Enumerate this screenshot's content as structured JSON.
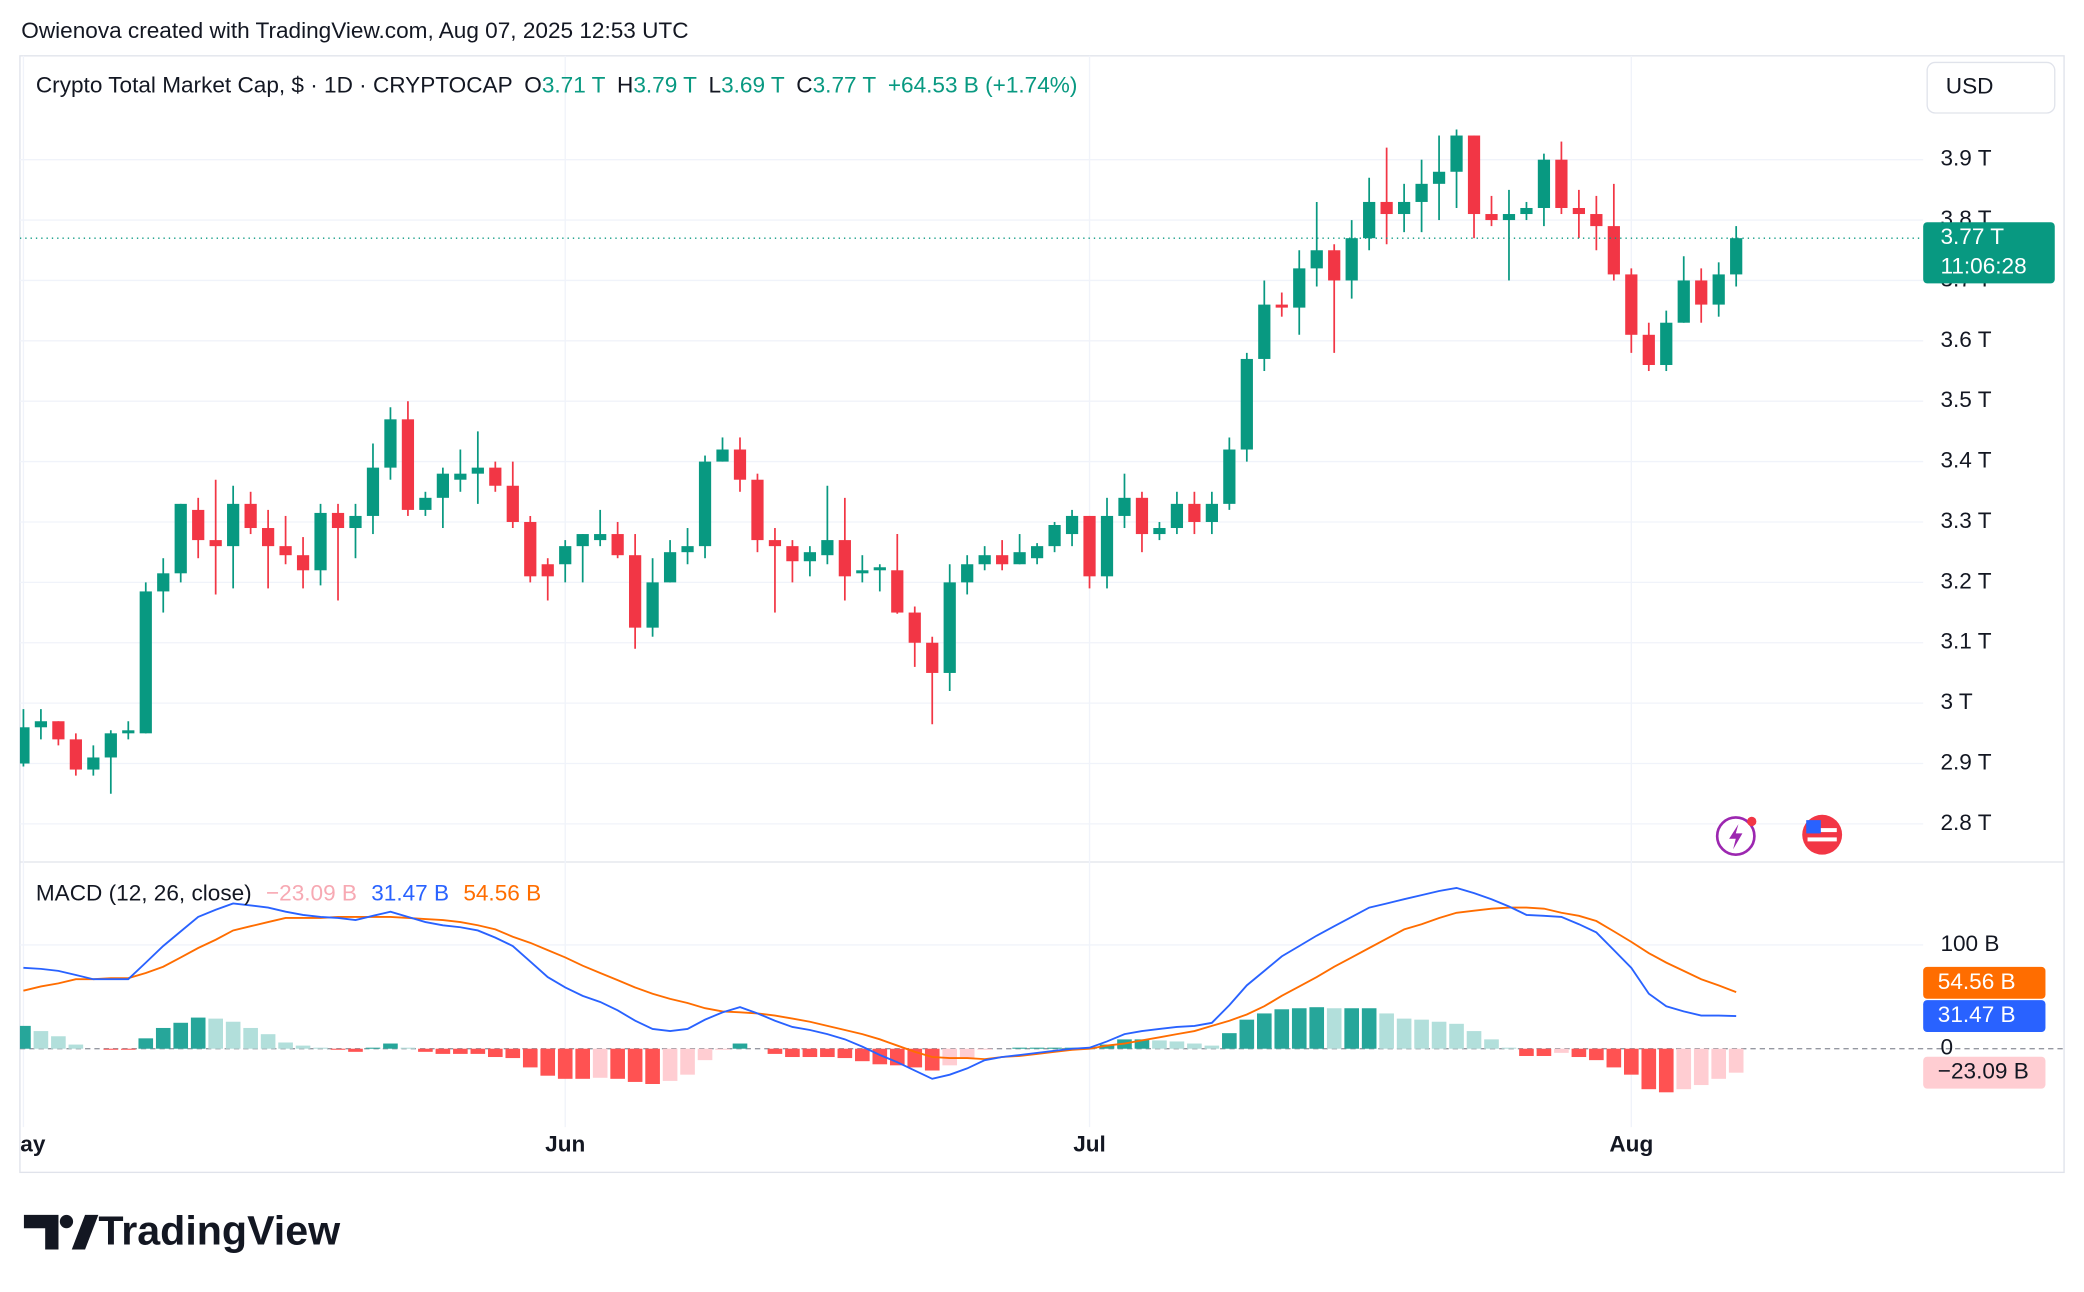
{
  "chart_data": {
    "type": "candlestick",
    "attribution": "Owienova created with TradingView.com, Aug 07, 2025 12:53 UTC",
    "legend": {
      "symbol": "Crypto Total Market Cap, $ · 1D · CRYPTOCAP",
      "open_key": "O",
      "open": "3.71 T",
      "high_key": "H",
      "high": "3.79 T",
      "low_key": "L",
      "low": "3.69 T",
      "close_key": "C",
      "close": "3.77 T",
      "change": "+64.53 B (+1.74%)"
    },
    "currency": "USD",
    "price_label": "3.77 T",
    "countdown": "11:06:28",
    "branding": "TradingView",
    "up_color": "#089981",
    "down_color": "#f23645",
    "grid": true,
    "xlim": [
      -0.2,
      108.7
    ],
    "xticks": [
      {
        "value": 0,
        "label": "May"
      },
      {
        "value": 31,
        "label": "Jun"
      },
      {
        "value": 61,
        "label": "Jul"
      },
      {
        "value": 92,
        "label": "Aug"
      }
    ],
    "ylim": [
      2.738,
      4.072
    ],
    "yticks": [
      {
        "value": 2.8,
        "label": "2.8 T"
      },
      {
        "value": 2.9,
        "label": "2.9 T"
      },
      {
        "value": 3,
        "label": "3 T"
      },
      {
        "value": 3.1,
        "label": "3.1 T"
      },
      {
        "value": 3.2,
        "label": "3.2 T"
      },
      {
        "value": 3.3,
        "label": "3.3 T"
      },
      {
        "value": 3.4,
        "label": "3.4 T"
      },
      {
        "value": 3.5,
        "label": "3.5 T"
      },
      {
        "value": 3.6,
        "label": "3.6 T"
      },
      {
        "value": 3.7,
        "label": "3.7 T"
      },
      {
        "value": 3.8,
        "label": "3.8 T"
      },
      {
        "value": 3.9,
        "label": "3.9 T"
      }
    ],
    "open": [
      2.9,
      2.96,
      2.97,
      2.94,
      2.89,
      2.91,
      2.95,
      2.95,
      3.185,
      3.215,
      3.32,
      3.27,
      3.26,
      3.33,
      3.29,
      3.26,
      3.245,
      3.22,
      3.315,
      3.29,
      3.31,
      3.39,
      3.47,
      3.32,
      3.34,
      3.37,
      3.38,
      3.39,
      3.36,
      3.3,
      3.23,
      3.23,
      3.26,
      3.27,
      3.28,
      3.245,
      3.125,
      3.2,
      3.25,
      3.26,
      3.4,
      3.42,
      3.37,
      3.27,
      3.26,
      3.235,
      3.245,
      3.27,
      3.215,
      3.22,
      3.22,
      3.15,
      3.1,
      3.05,
      3.2,
      3.23,
      3.245,
      3.23,
      3.24,
      3.26,
      3.28,
      3.31,
      3.21,
      3.31,
      3.34,
      3.28,
      3.29,
      3.33,
      3.3,
      3.33,
      3.42,
      3.57,
      3.66,
      3.655,
      3.72,
      3.75,
      3.7,
      3.77,
      3.83,
      3.81,
      3.83,
      3.86,
      3.88,
      3.94,
      3.81,
      3.8,
      3.81,
      3.82,
      3.9,
      3.82,
      3.81,
      3.79,
      3.71,
      3.61,
      3.56,
      3.63,
      3.7,
      3.66,
      3.71
    ],
    "high": [
      2.99,
      2.99,
      2.97,
      2.95,
      2.93,
      2.955,
      2.97,
      3.2,
      3.24,
      3.33,
      3.34,
      3.37,
      3.36,
      3.35,
      3.32,
      3.31,
      3.275,
      3.33,
      3.33,
      3.33,
      3.43,
      3.49,
      3.5,
      3.35,
      3.39,
      3.42,
      3.45,
      3.4,
      3.4,
      3.31,
      3.24,
      3.27,
      3.28,
      3.32,
      3.3,
      3.28,
      3.24,
      3.27,
      3.29,
      3.41,
      3.44,
      3.44,
      3.38,
      3.29,
      3.27,
      3.26,
      3.36,
      3.34,
      3.245,
      3.23,
      3.28,
      3.16,
      3.11,
      3.23,
      3.245,
      3.26,
      3.27,
      3.28,
      3.265,
      3.3,
      3.32,
      3.31,
      3.34,
      3.38,
      3.35,
      3.3,
      3.35,
      3.35,
      3.35,
      3.44,
      3.58,
      3.7,
      3.68,
      3.75,
      3.83,
      3.76,
      3.8,
      3.87,
      3.92,
      3.86,
      3.9,
      3.94,
      3.95,
      3.94,
      3.84,
      3.85,
      3.83,
      3.91,
      3.93,
      3.85,
      3.84,
      3.86,
      3.72,
      3.63,
      3.65,
      3.74,
      3.72,
      3.73,
      3.79
    ],
    "low": [
      2.895,
      2.94,
      2.93,
      2.88,
      2.88,
      2.85,
      2.94,
      2.95,
      3.15,
      3.2,
      3.24,
      3.18,
      3.19,
      3.28,
      3.19,
      3.23,
      3.19,
      3.195,
      3.17,
      3.24,
      3.28,
      3.37,
      3.31,
      3.31,
      3.29,
      3.35,
      3.33,
      3.35,
      3.29,
      3.2,
      3.17,
      3.2,
      3.2,
      3.26,
      3.24,
      3.09,
      3.11,
      3.2,
      3.23,
      3.24,
      3.4,
      3.35,
      3.25,
      3.15,
      3.2,
      3.21,
      3.23,
      3.17,
      3.2,
      3.185,
      3.148,
      3.06,
      2.965,
      3.02,
      3.18,
      3.22,
      3.22,
      3.23,
      3.23,
      3.25,
      3.26,
      3.19,
      3.19,
      3.29,
      3.25,
      3.27,
      3.28,
      3.28,
      3.28,
      3.32,
      3.4,
      3.55,
      3.64,
      3.61,
      3.69,
      3.58,
      3.67,
      3.75,
      3.76,
      3.78,
      3.78,
      3.8,
      3.82,
      3.77,
      3.79,
      3.7,
      3.8,
      3.79,
      3.81,
      3.77,
      3.75,
      3.7,
      3.58,
      3.55,
      3.55,
      3.63,
      3.63,
      3.64,
      3.69
    ],
    "close": [
      2.96,
      2.97,
      2.94,
      2.89,
      2.91,
      2.95,
      2.955,
      3.185,
      3.215,
      3.33,
      3.27,
      3.26,
      3.33,
      3.29,
      3.26,
      3.245,
      3.22,
      3.315,
      3.29,
      3.31,
      3.39,
      3.47,
      3.32,
      3.34,
      3.38,
      3.38,
      3.39,
      3.36,
      3.3,
      3.21,
      3.21,
      3.26,
      3.28,
      3.28,
      3.245,
      3.125,
      3.2,
      3.25,
      3.26,
      3.4,
      3.42,
      3.37,
      3.27,
      3.26,
      3.235,
      3.25,
      3.27,
      3.21,
      3.22,
      3.225,
      3.15,
      3.1,
      3.05,
      3.2,
      3.23,
      3.245,
      3.23,
      3.25,
      3.26,
      3.295,
      3.31,
      3.21,
      3.31,
      3.34,
      3.28,
      3.29,
      3.33,
      3.3,
      3.33,
      3.42,
      3.57,
      3.66,
      3.655,
      3.72,
      3.75,
      3.7,
      3.77,
      3.83,
      3.81,
      3.83,
      3.86,
      3.88,
      3.94,
      3.81,
      3.8,
      3.81,
      3.82,
      3.9,
      3.82,
      3.81,
      3.79,
      3.71,
      3.61,
      3.56,
      3.63,
      3.7,
      3.66,
      3.71,
      3.77
    ],
    "macd": {
      "type": "macd",
      "title": "MACD (12, 26, close)",
      "ylim": [
        -75.6,
        178
      ],
      "yticks": [
        {
          "value": 100,
          "label": "100 B"
        },
        0
      ],
      "histogram": {
        "value_label": "−23.09 B",
        "colors": {
          "up_rising": "#26a69a",
          "up_falling": "#b2dfdb",
          "down_falling": "#ff5252",
          "down_rising": "#ffcdd2"
        },
        "values": [
          22,
          17,
          12,
          4,
          0,
          -1,
          -1,
          10,
          20,
          25,
          30,
          29,
          26,
          20,
          14,
          6,
          3,
          1,
          -1,
          -3,
          1,
          5,
          1,
          -3,
          -5,
          -5,
          -5,
          -8,
          -9,
          -18,
          -26,
          -29,
          -29,
          -28,
          -29,
          -32,
          -34,
          -31,
          -25,
          -11,
          -1,
          5,
          0,
          -5,
          -8,
          -8,
          -8,
          -9,
          -12,
          -15,
          -16,
          -18,
          -21,
          -16,
          -10,
          -1,
          0,
          1,
          1,
          1,
          1,
          1,
          4,
          9,
          9,
          8,
          7,
          5,
          3,
          15,
          28,
          34,
          38,
          39,
          40,
          39,
          39,
          39,
          34,
          29,
          28,
          26,
          24,
          17,
          9,
          1,
          -7,
          -7,
          -4,
          -8,
          -11,
          -18,
          -25,
          -39,
          -42,
          -39,
          -35,
          -29,
          -23.09
        ]
      },
      "macd_line": {
        "value_label": "31.47 B",
        "color": "#2962ff",
        "values": [
          78,
          77,
          75,
          71,
          67,
          67,
          67,
          83,
          99,
          113,
          127,
          134,
          140,
          138,
          136,
          132,
          129,
          127,
          126,
          124,
          128,
          132,
          127,
          122,
          119,
          117,
          114,
          107,
          99,
          84,
          69,
          59,
          51,
          45,
          37,
          27,
          19,
          17,
          19,
          28,
          35,
          40,
          34,
          27,
          21,
          18,
          14,
          9,
          2,
          -6,
          -13,
          -21,
          -29,
          -25,
          -19,
          -11,
          -8,
          -6,
          -4,
          -2,
          0,
          1,
          7,
          14,
          17,
          19,
          21,
          22,
          25,
          42,
          61,
          75,
          89,
          99,
          109,
          118,
          127,
          136,
          140,
          144,
          148,
          152,
          155,
          150,
          144,
          137,
          129,
          128,
          127,
          120,
          112,
          95,
          78,
          53,
          41,
          36,
          32,
          32,
          31.47
        ]
      },
      "signal_line": {
        "value_label": "54.56 B",
        "color": "#ff6d00",
        "values": [
          56,
          60,
          63,
          67,
          67,
          68,
          68,
          73,
          79,
          88,
          97,
          105,
          114,
          118,
          122,
          126,
          126,
          126,
          127,
          127,
          127,
          127,
          126,
          125,
          124,
          122,
          119,
          115,
          108,
          102,
          95,
          88,
          80,
          73,
          66,
          59,
          53,
          48,
          44,
          39,
          36,
          35,
          34,
          32,
          29,
          26,
          22,
          18,
          14,
          9,
          3,
          -3,
          -8,
          -9,
          -9,
          -10,
          -8,
          -7,
          -5,
          -3,
          -1,
          0,
          3,
          5,
          8,
          11,
          14,
          17,
          22,
          27,
          33,
          41,
          51,
          60,
          69,
          79,
          88,
          97,
          106,
          115,
          120,
          126,
          131,
          133,
          135,
          136,
          136,
          135,
          131,
          128,
          123,
          113,
          103,
          92,
          83,
          75,
          67,
          61,
          54.56
        ]
      }
    }
  }
}
